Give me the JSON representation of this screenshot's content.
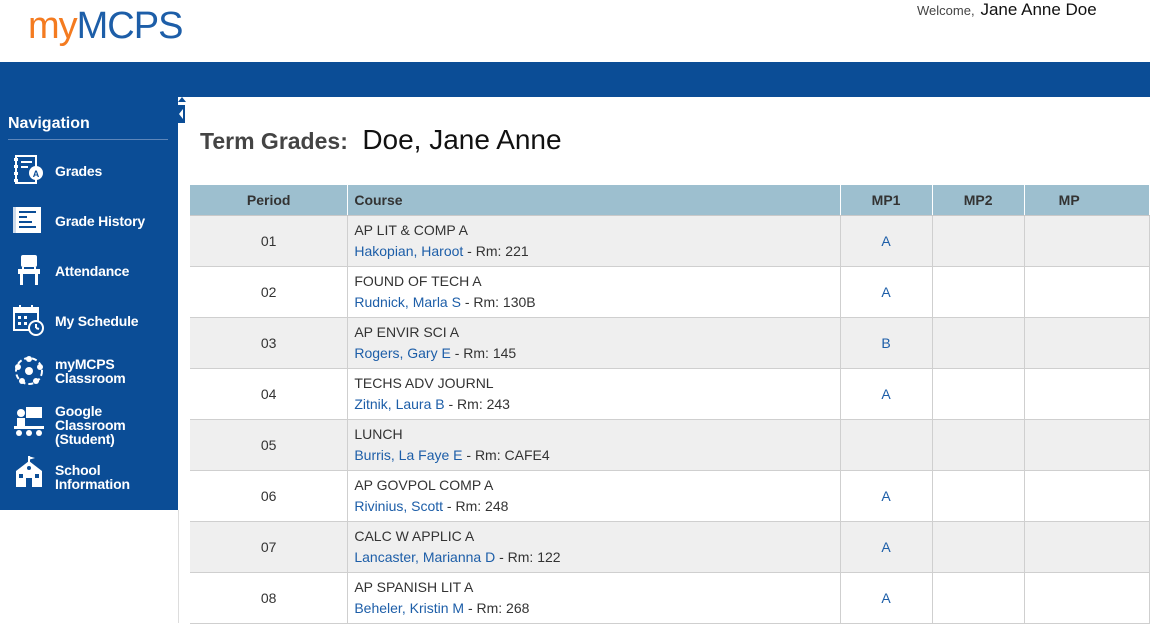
{
  "header": {
    "logo_my": "my",
    "logo_mcps": "MCPS",
    "welcome_label": "Welcome,",
    "user_name": "Jane Anne Doe"
  },
  "sidebar": {
    "title": "Navigation",
    "items": [
      {
        "label": "Grades",
        "icon": "grades-icon"
      },
      {
        "label": "Grade History",
        "icon": "grade-history-icon"
      },
      {
        "label": "Attendance",
        "icon": "attendance-chair-icon"
      },
      {
        "label": "My Schedule",
        "icon": "calendar-clock-icon"
      },
      {
        "label_line1": "myMCPS",
        "label_line2": "Classroom",
        "icon": "classroom-circle-icon"
      },
      {
        "label_line1": "Google",
        "label_line2": "Classroom",
        "label_line3": "(Student)",
        "icon": "google-classroom-icon"
      },
      {
        "label_line1": "School",
        "label_line2": "Information",
        "icon": "school-building-icon"
      }
    ]
  },
  "page": {
    "title_label": "Term Grades:",
    "student_name": "Doe, Jane Anne"
  },
  "table": {
    "headers": {
      "period": "Period",
      "course": "Course",
      "mp1": "MP1",
      "mp2": "MP2",
      "mp3": "MP"
    },
    "rows": [
      {
        "period": "01",
        "course": "AP LIT & COMP A",
        "teacher": "Hakopian, Haroot",
        "room": " - Rm: 221",
        "mp1": "A"
      },
      {
        "period": "02",
        "course": "FOUND OF TECH A",
        "teacher": "Rudnick, Marla S",
        "room": " - Rm: 130B",
        "mp1": "A"
      },
      {
        "period": "03",
        "course": "AP ENVIR SCI A",
        "teacher": "Rogers, Gary E",
        "room": " - Rm: 145",
        "mp1": "B"
      },
      {
        "period": "04",
        "course": "TECHS ADV JOURNL",
        "teacher": "Zitnik, Laura B",
        "room": " - Rm: 243",
        "mp1": "A"
      },
      {
        "period": "05",
        "course": "LUNCH",
        "teacher": "Burris, La Faye E",
        "room": " - Rm: CAFE4",
        "mp1": ""
      },
      {
        "period": "06",
        "course": "AP GOVPOL COMP A",
        "teacher": "Rivinius, Scott",
        "room": " - Rm: 248",
        "mp1": "A"
      },
      {
        "period": "07",
        "course": "CALC W APPLIC A",
        "teacher": "Lancaster, Marianna D",
        "room": " - Rm: 122",
        "mp1": "A"
      },
      {
        "period": "08",
        "course": "AP SPANISH LIT A",
        "teacher": "Beheler, Kristin M",
        "room": " - Rm: 268",
        "mp1": "A"
      }
    ]
  },
  "colors": {
    "brand_blue": "#0b4d96",
    "logo_orange": "#f47b20",
    "header_row": "#9dbfcf",
    "link_blue": "#1d5ea8"
  }
}
